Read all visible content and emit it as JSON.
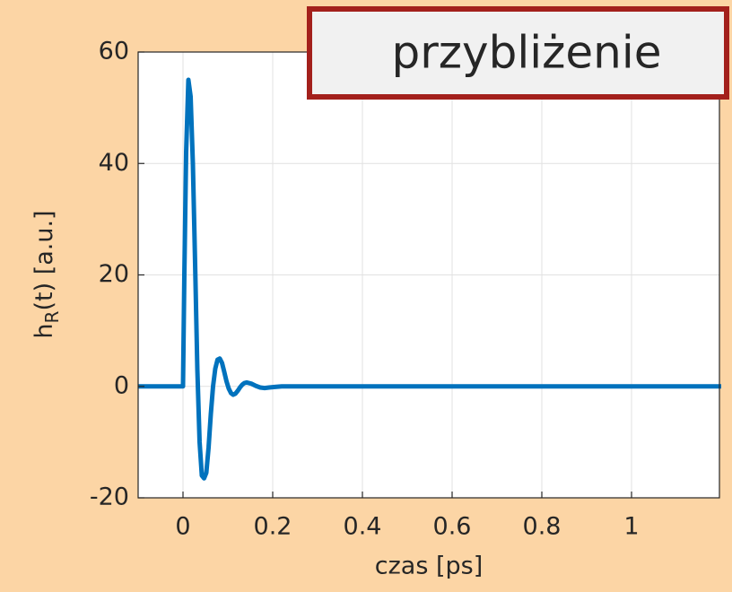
{
  "chart_data": {
    "type": "line",
    "annotation": "przybliżenie",
    "xlabel": "czas [ps]",
    "ylabel": [
      "h",
      "R",
      "(t) [a.u.]"
    ],
    "xlim": [
      -0.1,
      1.196
    ],
    "ylim": [
      -20,
      60
    ],
    "xticks": [
      0,
      0.2,
      0.4,
      0.6,
      0.8,
      1
    ],
    "yticks": [
      -20,
      0,
      20,
      40,
      60
    ],
    "grid": true,
    "series": [
      {
        "color": "#0072bd",
        "x": [
          -0.1,
          0,
          0.003,
          0.007,
          0.012,
          0.017,
          0.022,
          0.027,
          0.032,
          0.037,
          0.042,
          0.047,
          0.052,
          0.057,
          0.062,
          0.067,
          0.072,
          0.077,
          0.082,
          0.087,
          0.092,
          0.097,
          0.102,
          0.107,
          0.112,
          0.117,
          0.122,
          0.127,
          0.132,
          0.137,
          0.142,
          0.152,
          0.162,
          0.172,
          0.182,
          0.192,
          0.205,
          0.22,
          0.25,
          1.2
        ],
        "values": [
          0,
          0,
          20,
          42,
          55,
          52,
          40,
          22,
          3,
          -10,
          -16,
          -16.5,
          -15.5,
          -11,
          -5,
          0,
          3.2,
          4.8,
          5,
          4.2,
          2.6,
          0.9,
          -0.4,
          -1.2,
          -1.5,
          -1.3,
          -0.8,
          -0.2,
          0.3,
          0.6,
          0.7,
          0.5,
          0.1,
          -0.2,
          -0.3,
          -0.2,
          -0.1,
          0,
          0,
          0
        ]
      }
    ]
  }
}
